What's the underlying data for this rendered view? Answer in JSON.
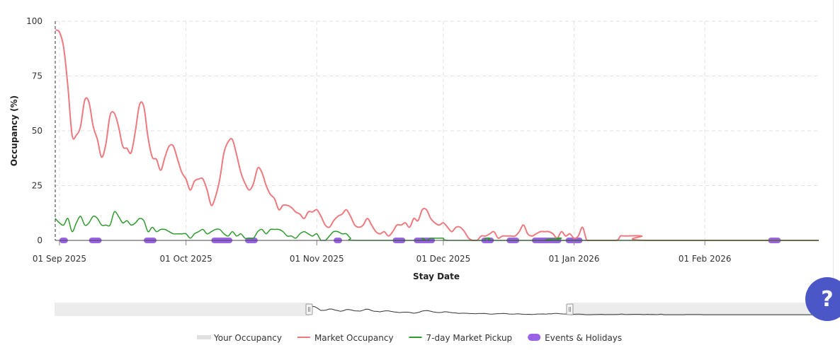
{
  "chart_data": {
    "type": "line",
    "title": "",
    "xlabel": "Stay Date",
    "ylabel": "Occupancy (%)",
    "ylim": [
      0,
      100
    ],
    "xlim": [
      "2025-08-31",
      "2026-02-28"
    ],
    "y_ticks": [
      0,
      25,
      50,
      75,
      100
    ],
    "x_ticks": [
      {
        "date": "2025-09-01",
        "label": "01 Sep 2025"
      },
      {
        "date": "2025-10-01",
        "label": "01 Oct 2025"
      },
      {
        "date": "2025-11-01",
        "label": "01 Nov 2025"
      },
      {
        "date": "2025-12-01",
        "label": "01 Dec 2025"
      },
      {
        "date": "2026-01-01",
        "label": "01 Jan 2026"
      },
      {
        "date": "2026-02-01",
        "label": "01 Feb 2026"
      }
    ],
    "grid": true,
    "legend_position": "bottom",
    "series": [
      {
        "name": "Market Occupancy",
        "color": "#ee7a7f",
        "points": [
          [
            "2025-08-31",
            96
          ],
          [
            "2025-09-01",
            95
          ],
          [
            "2025-09-02",
            88
          ],
          [
            "2025-09-03",
            70
          ],
          [
            "2025-09-04",
            48
          ],
          [
            "2025-09-05",
            48
          ],
          [
            "2025-09-06",
            52
          ],
          [
            "2025-09-07",
            64
          ],
          [
            "2025-09-08",
            63
          ],
          [
            "2025-09-09",
            52
          ],
          [
            "2025-09-10",
            46
          ],
          [
            "2025-09-11",
            38
          ],
          [
            "2025-09-12",
            44
          ],
          [
            "2025-09-13",
            57
          ],
          [
            "2025-09-14",
            58
          ],
          [
            "2025-09-15",
            52
          ],
          [
            "2025-09-16",
            43
          ],
          [
            "2025-09-17",
            42
          ],
          [
            "2025-09-18",
            40
          ],
          [
            "2025-09-19",
            50
          ],
          [
            "2025-09-20",
            62
          ],
          [
            "2025-09-21",
            61
          ],
          [
            "2025-09-22",
            47
          ],
          [
            "2025-09-23",
            38
          ],
          [
            "2025-09-24",
            37
          ],
          [
            "2025-09-25",
            32
          ],
          [
            "2025-09-26",
            38
          ],
          [
            "2025-09-27",
            43
          ],
          [
            "2025-09-28",
            43
          ],
          [
            "2025-09-29",
            37
          ],
          [
            "2025-09-30",
            31
          ],
          [
            "2025-10-01",
            28
          ],
          [
            "2025-10-02",
            23
          ],
          [
            "2025-10-03",
            27
          ],
          [
            "2025-10-04",
            28
          ],
          [
            "2025-10-05",
            28
          ],
          [
            "2025-10-06",
            23
          ],
          [
            "2025-10-07",
            16
          ],
          [
            "2025-10-08",
            20
          ],
          [
            "2025-10-09",
            28
          ],
          [
            "2025-10-10",
            40
          ],
          [
            "2025-10-11",
            45
          ],
          [
            "2025-10-12",
            46
          ],
          [
            "2025-10-13",
            39
          ],
          [
            "2025-10-14",
            31
          ],
          [
            "2025-10-15",
            26
          ],
          [
            "2025-10-16",
            23
          ],
          [
            "2025-10-17",
            26
          ],
          [
            "2025-10-18",
            33
          ],
          [
            "2025-10-19",
            31
          ],
          [
            "2025-10-20",
            25
          ],
          [
            "2025-10-21",
            21
          ],
          [
            "2025-10-22",
            19
          ],
          [
            "2025-10-23",
            14
          ],
          [
            "2025-10-24",
            16
          ],
          [
            "2025-10-25",
            16
          ],
          [
            "2025-10-26",
            15
          ],
          [
            "2025-10-27",
            13
          ],
          [
            "2025-10-28",
            12
          ],
          [
            "2025-10-29",
            10
          ],
          [
            "2025-10-30",
            13
          ],
          [
            "2025-10-31",
            13
          ],
          [
            "2025-11-01",
            14
          ],
          [
            "2025-11-02",
            11
          ],
          [
            "2025-11-03",
            7
          ],
          [
            "2025-11-04",
            6
          ],
          [
            "2025-11-05",
            9
          ],
          [
            "2025-11-06",
            11
          ],
          [
            "2025-11-07",
            12
          ],
          [
            "2025-11-08",
            14
          ],
          [
            "2025-11-09",
            11
          ],
          [
            "2025-11-10",
            7
          ],
          [
            "2025-11-11",
            6
          ],
          [
            "2025-11-12",
            7
          ],
          [
            "2025-11-13",
            10
          ],
          [
            "2025-11-14",
            7
          ],
          [
            "2025-11-15",
            4
          ],
          [
            "2025-11-16",
            3
          ],
          [
            "2025-11-17",
            4
          ],
          [
            "2025-11-18",
            2
          ],
          [
            "2025-11-19",
            4
          ],
          [
            "2025-11-20",
            7
          ],
          [
            "2025-11-21",
            7
          ],
          [
            "2025-11-22",
            8
          ],
          [
            "2025-11-23",
            6
          ],
          [
            "2025-11-24",
            10
          ],
          [
            "2025-11-25",
            9
          ],
          [
            "2025-11-26",
            14
          ],
          [
            "2025-11-27",
            14
          ],
          [
            "2025-11-28",
            10
          ],
          [
            "2025-11-29",
            8
          ],
          [
            "2025-11-30",
            7
          ],
          [
            "2025-12-01",
            8
          ],
          [
            "2025-12-02",
            6
          ],
          [
            "2025-12-03",
            4
          ],
          [
            "2025-12-04",
            6
          ],
          [
            "2025-12-05",
            6
          ],
          [
            "2025-12-06",
            4
          ],
          [
            "2025-12-07",
            1
          ],
          [
            "2025-12-08",
            0
          ],
          [
            "2025-12-09",
            0
          ],
          [
            "2025-12-10",
            2
          ],
          [
            "2025-12-11",
            2
          ],
          [
            "2025-12-12",
            3
          ],
          [
            "2025-12-13",
            4
          ],
          [
            "2025-12-14",
            1
          ],
          [
            "2025-12-15",
            2
          ],
          [
            "2025-12-16",
            2
          ],
          [
            "2025-12-17",
            2
          ],
          [
            "2025-12-18",
            2
          ],
          [
            "2025-12-19",
            4
          ],
          [
            "2025-12-20",
            7
          ],
          [
            "2025-12-21",
            3
          ],
          [
            "2025-12-22",
            2
          ],
          [
            "2025-12-23",
            3
          ],
          [
            "2025-12-24",
            4
          ],
          [
            "2025-12-25",
            4
          ],
          [
            "2025-12-26",
            4
          ],
          [
            "2025-12-27",
            3
          ],
          [
            "2025-12-28",
            1
          ],
          [
            "2025-12-29",
            4
          ],
          [
            "2025-12-30",
            2
          ],
          [
            "2025-12-31",
            3
          ],
          [
            "2026-01-01",
            1
          ],
          [
            "2026-01-02",
            2
          ],
          [
            "2026-01-03",
            6
          ],
          [
            "2026-01-04",
            0
          ],
          [
            "2026-01-05",
            0
          ],
          [
            "2026-01-06",
            0
          ],
          [
            "2026-01-07",
            0
          ],
          [
            "2026-01-11",
            0
          ],
          [
            "2026-01-12",
            2
          ],
          [
            "2026-01-13",
            2
          ],
          [
            "2026-01-17",
            2
          ],
          [
            "2026-01-18",
            0
          ],
          [
            "2026-02-28",
            0
          ]
        ]
      },
      {
        "name": "7-day Market Pickup",
        "color": "#2e9b2e",
        "points": [
          [
            "2025-08-31",
            10
          ],
          [
            "2025-09-01",
            8
          ],
          [
            "2025-09-02",
            7
          ],
          [
            "2025-09-03",
            10
          ],
          [
            "2025-09-04",
            4
          ],
          [
            "2025-09-05",
            8
          ],
          [
            "2025-09-06",
            11
          ],
          [
            "2025-09-07",
            7
          ],
          [
            "2025-09-08",
            8
          ],
          [
            "2025-09-09",
            11
          ],
          [
            "2025-09-10",
            10
          ],
          [
            "2025-09-11",
            7
          ],
          [
            "2025-09-12",
            7
          ],
          [
            "2025-09-13",
            7
          ],
          [
            "2025-09-14",
            13
          ],
          [
            "2025-09-15",
            11
          ],
          [
            "2025-09-16",
            8
          ],
          [
            "2025-09-17",
            9
          ],
          [
            "2025-09-18",
            7
          ],
          [
            "2025-09-19",
            8
          ],
          [
            "2025-09-20",
            10
          ],
          [
            "2025-09-21",
            9
          ],
          [
            "2025-09-22",
            4
          ],
          [
            "2025-09-23",
            6
          ],
          [
            "2025-09-24",
            4
          ],
          [
            "2025-09-25",
            5
          ],
          [
            "2025-09-26",
            5
          ],
          [
            "2025-09-27",
            4
          ],
          [
            "2025-09-28",
            3
          ],
          [
            "2025-09-29",
            3
          ],
          [
            "2025-09-30",
            3
          ],
          [
            "2025-10-01",
            3
          ],
          [
            "2025-10-02",
            1
          ],
          [
            "2025-10-03",
            3
          ],
          [
            "2025-10-04",
            4
          ],
          [
            "2025-10-05",
            5
          ],
          [
            "2025-10-06",
            3
          ],
          [
            "2025-10-07",
            4
          ],
          [
            "2025-10-08",
            5
          ],
          [
            "2025-10-09",
            5
          ],
          [
            "2025-10-10",
            3
          ],
          [
            "2025-10-11",
            2
          ],
          [
            "2025-10-12",
            4
          ],
          [
            "2025-10-13",
            2
          ],
          [
            "2025-10-14",
            3
          ],
          [
            "2025-10-15",
            1
          ],
          [
            "2025-10-16",
            1
          ],
          [
            "2025-10-17",
            1
          ],
          [
            "2025-10-18",
            4
          ],
          [
            "2025-10-19",
            5
          ],
          [
            "2025-10-20",
            3
          ],
          [
            "2025-10-21",
            5
          ],
          [
            "2025-10-22",
            5
          ],
          [
            "2025-10-23",
            5
          ],
          [
            "2025-10-24",
            4
          ],
          [
            "2025-10-25",
            2
          ],
          [
            "2025-10-26",
            2
          ],
          [
            "2025-10-27",
            1
          ],
          [
            "2025-10-28",
            3
          ],
          [
            "2025-10-29",
            4
          ],
          [
            "2025-10-30",
            3
          ],
          [
            "2025-10-31",
            2
          ],
          [
            "2025-11-01",
            3
          ],
          [
            "2025-11-02",
            0
          ],
          [
            "2025-11-03",
            0
          ],
          [
            "2025-11-04",
            2
          ],
          [
            "2025-11-05",
            4
          ],
          [
            "2025-11-06",
            4
          ],
          [
            "2025-11-07",
            3
          ],
          [
            "2025-11-08",
            3
          ],
          [
            "2025-11-09",
            1
          ],
          [
            "2025-11-10",
            0
          ],
          [
            "2025-11-25",
            0
          ],
          [
            "2025-11-26",
            1
          ],
          [
            "2025-11-27",
            0
          ],
          [
            "2025-11-28",
            1
          ],
          [
            "2025-11-29",
            1
          ],
          [
            "2025-11-30",
            1
          ],
          [
            "2025-12-01",
            1
          ],
          [
            "2025-12-02",
            0
          ],
          [
            "2025-12-10",
            0
          ],
          [
            "2025-12-11",
            1
          ],
          [
            "2025-12-12",
            1
          ],
          [
            "2025-12-13",
            0
          ],
          [
            "2025-12-27",
            0
          ],
          [
            "2025-12-28",
            1
          ],
          [
            "2025-12-29",
            1
          ],
          [
            "2025-12-30",
            0
          ],
          [
            "2026-02-28",
            0
          ]
        ]
      },
      {
        "name": "Your Occupancy",
        "color": "#e0e0e0",
        "points": []
      }
    ],
    "events": {
      "name": "Events & Holidays",
      "color": "#9a63e6",
      "ranges": [
        [
          "2025-09-01",
          "2025-09-03"
        ],
        [
          "2025-09-08",
          "2025-09-11"
        ],
        [
          "2025-09-21",
          "2025-09-24"
        ],
        [
          "2025-10-07",
          "2025-10-12"
        ],
        [
          "2025-10-15",
          "2025-10-18"
        ],
        [
          "2025-11-05",
          "2025-11-07"
        ],
        [
          "2025-11-19",
          "2025-11-22"
        ],
        [
          "2025-11-24",
          "2025-11-29"
        ],
        [
          "2025-12-10",
          "2025-12-13"
        ],
        [
          "2025-12-16",
          "2025-12-19"
        ],
        [
          "2025-12-22",
          "2025-12-29"
        ],
        [
          "2025-12-30",
          "2026-01-03"
        ],
        [
          "2026-02-16",
          "2026-02-19"
        ]
      ]
    },
    "reference_line": {
      "date": "2025-08-31",
      "style": "dashed"
    }
  },
  "legend": {
    "items": [
      {
        "label": "Your Occupancy",
        "color": "#e0e0e0",
        "shape": "bar"
      },
      {
        "label": "Market Occupancy",
        "color": "#ee7a7f",
        "shape": "line"
      },
      {
        "label": "7-day Market Pickup",
        "color": "#2e9b2e",
        "shape": "line"
      },
      {
        "label": "Events & Holidays",
        "color": "#9a63e6",
        "shape": "pill"
      }
    ]
  },
  "navigator": {
    "selected_range": [
      "2025-08-31",
      "2026-02-28"
    ]
  },
  "help": {
    "icon": "question-icon",
    "label": "?",
    "color": "#4b57c6"
  }
}
